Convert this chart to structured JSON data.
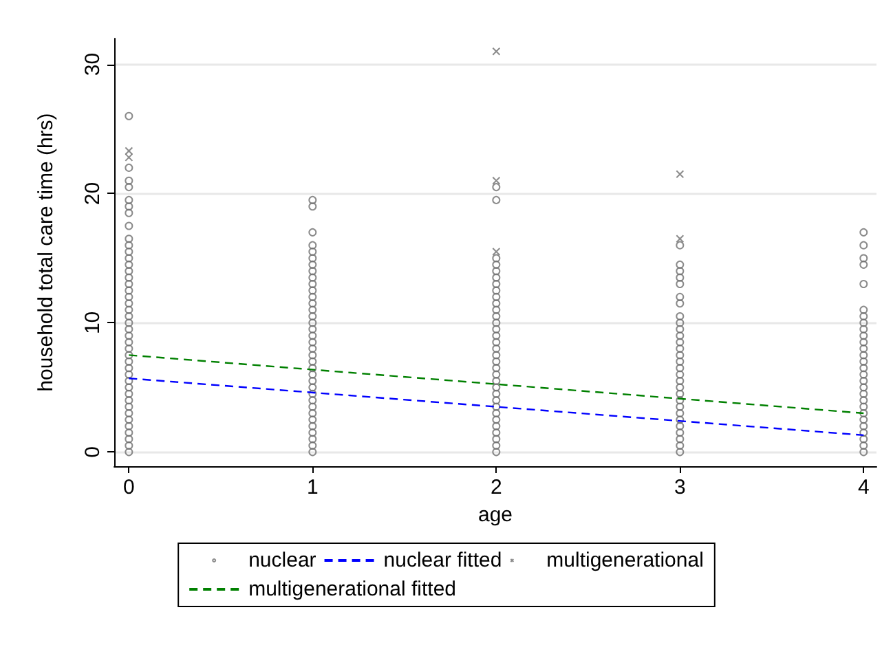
{
  "chart_data": {
    "type": "scatter",
    "xlabel": "age",
    "ylabel": "household total care time (hrs)",
    "xlim": [
      -0.08,
      4.07
    ],
    "ylim": [
      -1.1,
      32
    ],
    "xticks": [
      0,
      1,
      2,
      3,
      4
    ],
    "yticks": [
      0,
      10,
      20,
      30
    ],
    "grid": "y",
    "legend": "bottom",
    "series": [
      {
        "name": "nuclear",
        "type": "scatter",
        "marker": "circle",
        "color": "#6e6e6e",
        "x": [
          0,
          0,
          0,
          0,
          0,
          0,
          0,
          0,
          0,
          0,
          0,
          0,
          0,
          0,
          0,
          0,
          0,
          0,
          0,
          0,
          0,
          0,
          0,
          0,
          0,
          0,
          0,
          0,
          0,
          0,
          0,
          0,
          0,
          0,
          0,
          0,
          0,
          0,
          0,
          0,
          0,
          0,
          1,
          1,
          1,
          1,
          1,
          1,
          1,
          1,
          1,
          1,
          1,
          1,
          1,
          1,
          1,
          1,
          1,
          1,
          1,
          1,
          1,
          1,
          1,
          1,
          1,
          1,
          1,
          1,
          1,
          1,
          1,
          1,
          1,
          1,
          1,
          1,
          2,
          2,
          2,
          2,
          2,
          2,
          2,
          2,
          2,
          2,
          2,
          2,
          2,
          2,
          2,
          2,
          2,
          2,
          2,
          2,
          2,
          2,
          2,
          2,
          2,
          2,
          2,
          2,
          2,
          2,
          2,
          2,
          2,
          3,
          3,
          3,
          3,
          3,
          3,
          3,
          3,
          3,
          3,
          3,
          3,
          3,
          3,
          3,
          3,
          3,
          3,
          3,
          3,
          3,
          3,
          3,
          3,
          3,
          3,
          3,
          3,
          3,
          4,
          4,
          4,
          4,
          4,
          4,
          4,
          4,
          4,
          4,
          4,
          4,
          4,
          4,
          4,
          4,
          4,
          4,
          4,
          4,
          4,
          4,
          4,
          4,
          4,
          4,
          4,
          4
        ],
        "values": [
          0,
          0.5,
          1,
          1.5,
          2,
          2.5,
          3,
          3.5,
          4,
          4.5,
          5,
          5.5,
          6,
          6.5,
          7,
          7.5,
          8,
          8.5,
          9,
          9.5,
          10,
          10.5,
          11,
          11.5,
          12,
          12.5,
          13,
          13.5,
          14,
          14.5,
          15,
          15.5,
          16,
          16.5,
          17.5,
          18.5,
          19,
          19.5,
          20.5,
          21,
          22,
          26,
          0,
          0.5,
          1,
          1.5,
          2,
          2.5,
          3,
          3.5,
          4,
          4.5,
          5,
          5.5,
          6,
          6.5,
          7,
          7.5,
          8,
          8.5,
          9,
          9.5,
          10,
          10.5,
          11,
          11.5,
          12,
          12.5,
          13,
          13.5,
          14,
          14.5,
          15,
          15.5,
          16,
          17,
          19,
          19.5,
          0,
          0.5,
          1,
          1.5,
          2,
          2.5,
          3,
          3.5,
          4,
          4.5,
          5,
          5.5,
          6,
          6.5,
          7,
          7.5,
          8,
          8.5,
          9,
          9.5,
          10,
          10.5,
          11,
          11.5,
          12,
          12.5,
          13,
          13.5,
          14,
          14.5,
          15,
          19.5,
          20.5,
          0,
          0.5,
          1,
          1.5,
          2,
          2.5,
          3,
          3.5,
          4,
          4.5,
          5,
          5.5,
          6,
          6.5,
          7,
          7.5,
          8,
          8.5,
          9,
          9.5,
          10,
          10.5,
          11.5,
          12,
          13,
          13.5,
          14,
          14.5,
          16,
          0,
          0.5,
          1,
          1.5,
          2,
          2.5,
          3,
          3.5,
          4,
          4.5,
          5,
          5.5,
          6,
          6.5,
          7,
          7.5,
          8,
          8.5,
          9,
          9.5,
          10,
          10.5,
          11,
          13,
          14.5,
          15,
          16,
          17
        ]
      },
      {
        "name": "multigenerational",
        "type": "scatter",
        "marker": "cross",
        "color": "#6e6e6e",
        "x": [
          0,
          0,
          2,
          2,
          2,
          3,
          3
        ],
        "values": [
          23.3,
          22.8,
          31,
          21,
          15.5,
          21.5,
          16.5
        ]
      },
      {
        "name": "nuclear fitted",
        "type": "line",
        "marker": "none",
        "line_style": "dashed",
        "color": "#0000ff",
        "x": [
          0,
          4
        ],
        "values": [
          5.7,
          1.3
        ]
      },
      {
        "name": "multigenerational fitted",
        "type": "line",
        "marker": "none",
        "line_style": "dashed",
        "color": "#008000",
        "x": [
          0,
          4
        ],
        "values": [
          7.5,
          3.0
        ]
      }
    ]
  }
}
